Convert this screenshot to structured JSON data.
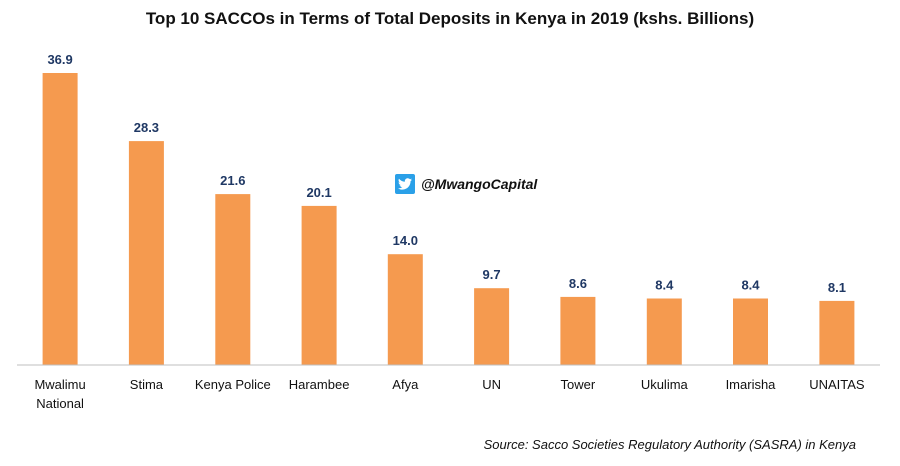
{
  "chart_data": {
    "type": "bar",
    "title": "Top 10 SACCOs in Terms of Total Deposits in Kenya in 2019 (kshs. Billions)",
    "categories": [
      [
        "Mwalimu",
        "National"
      ],
      [
        "Stima"
      ],
      [
        "Kenya Police"
      ],
      [
        "Harambee"
      ],
      [
        "Afya"
      ],
      [
        "UN"
      ],
      [
        "Tower"
      ],
      [
        "Ukulima"
      ],
      [
        "Imarisha"
      ],
      [
        "UNAITAS"
      ]
    ],
    "values": [
      36.9,
      28.3,
      21.6,
      20.1,
      14.0,
      9.7,
      8.6,
      8.4,
      8.4,
      8.1
    ],
    "value_labels": [
      "36.9",
      "28.3",
      "21.6",
      "20.1",
      "14.0",
      "9.7",
      "8.6",
      "8.4",
      "8.4",
      "8.1"
    ],
    "ylim": [
      0,
      36.9
    ],
    "grid": false,
    "bar_color": "#F59A4F",
    "label_color": "#1F3864"
  },
  "watermark": {
    "icon": "twitter-bird-icon",
    "handle": "@MwangoCapital",
    "icon_color": "#2AA0E8"
  },
  "source": "Source: Sacco Societies Regulatory Authority (SASRA) in Kenya"
}
